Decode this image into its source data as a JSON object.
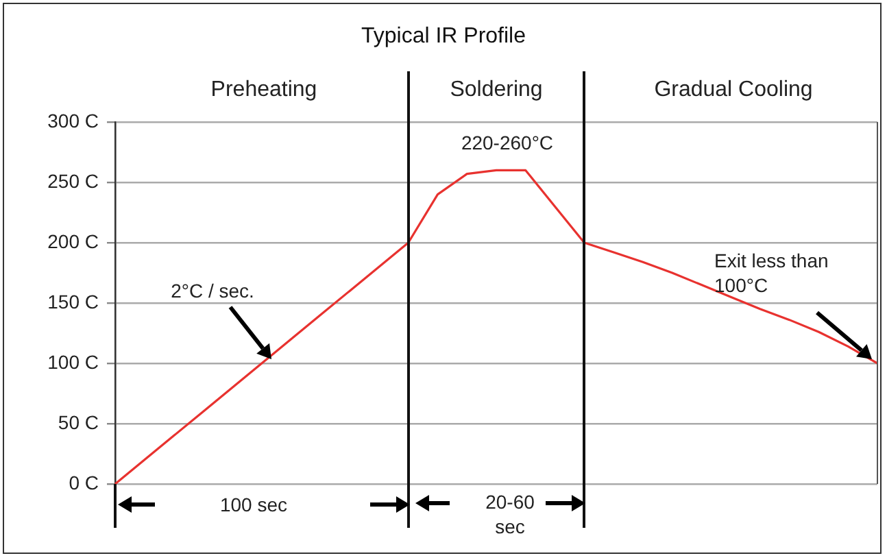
{
  "chart_data": {
    "type": "line",
    "title": "Typical IR Profile",
    "categories": [
      null,
      null,
      null,
      null,
      null,
      null,
      null,
      null,
      null,
      null,
      null,
      null,
      null,
      null,
      null,
      null,
      null,
      null,
      null,
      null,
      null,
      null,
      null,
      null,
      null,
      null,
      null
    ],
    "values": [
      0,
      20,
      40,
      60,
      80,
      100,
      120,
      140,
      160,
      180,
      200,
      240,
      257,
      260,
      260,
      230,
      200,
      192,
      184,
      175,
      165,
      155,
      145,
      136,
      126,
      114,
      100
    ],
    "color": "#e8322f",
    "marker": "none",
    "ylim": [
      0,
      300
    ],
    "yticks": [
      {
        "value": 0,
        "label": "0 C"
      },
      {
        "value": 50,
        "label": "50 C"
      },
      {
        "value": 100,
        "label": "100 C"
      },
      {
        "value": 150,
        "label": "150 C"
      },
      {
        "value": 200,
        "label": "200 C"
      },
      {
        "value": 250,
        "label": "250 C"
      },
      {
        "value": 300,
        "label": "300 C"
      }
    ],
    "grid": "y",
    "annotations": [
      "220-260°C",
      "2°C / sec.",
      "Exit less than 100°C",
      "100 sec",
      "20-60 sec",
      "Preheating",
      "Soldering",
      "Gradual Cooling"
    ]
  }
}
